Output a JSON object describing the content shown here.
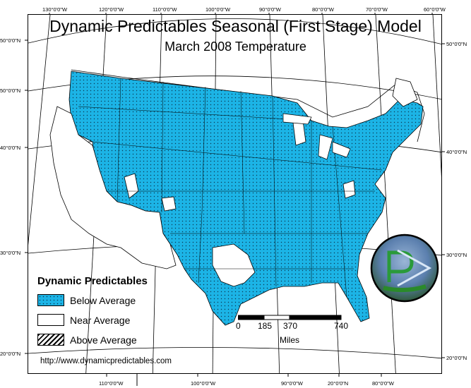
{
  "map": {
    "title": "Dynamic Predictables Seasonal (First Stage) Model",
    "subtitle": "March 2008 Temperature",
    "graticule_labels": {
      "top": [
        "130°0'0\"W",
        "120°0'0\"W",
        "110°0'0\"W",
        "100°0'0\"W",
        "90°0'0\"W",
        "80°0'0\"W",
        "70°0'0\"W",
        "60°0'0\"W"
      ],
      "bottom": [
        "110°0'0\"W",
        "100°0'0\"W",
        "90°0'0\"W",
        "20°0'0\"N",
        "80°0'0\"W"
      ],
      "left": [
        "50°0'0\"N",
        "50°0'0\"N",
        "40°0'0\"N",
        "30°0'0\"N",
        "20°0'0\"N"
      ],
      "right": [
        "50°0'0\"N",
        "40°0'0\"N",
        "30°0'0\"N",
        "20°0'0\"N"
      ]
    },
    "colors": {
      "below_average": "#1cb4e6",
      "near_average": "#ffffff",
      "border": "#000000"
    },
    "region_fill": "mostly below average (blue) across the central and eastern U.S.; near average in the Southwest, California, Nevada and parts of Texas"
  },
  "legend": {
    "title": "Dynamic Predictables",
    "items": [
      {
        "label": "Below Average",
        "swatch": "below"
      },
      {
        "label": "Near Average",
        "swatch": "near"
      },
      {
        "label": "Above Average",
        "swatch": "above"
      }
    ]
  },
  "scale_bar": {
    "ticks": [
      "0",
      "185",
      "370",
      "740"
    ],
    "unit": "Miles"
  },
  "logo": {
    "name": "dynamic-predictables-logo",
    "letter": "P"
  },
  "footer": {
    "url": "http://www.dynamicpredictables.com"
  }
}
